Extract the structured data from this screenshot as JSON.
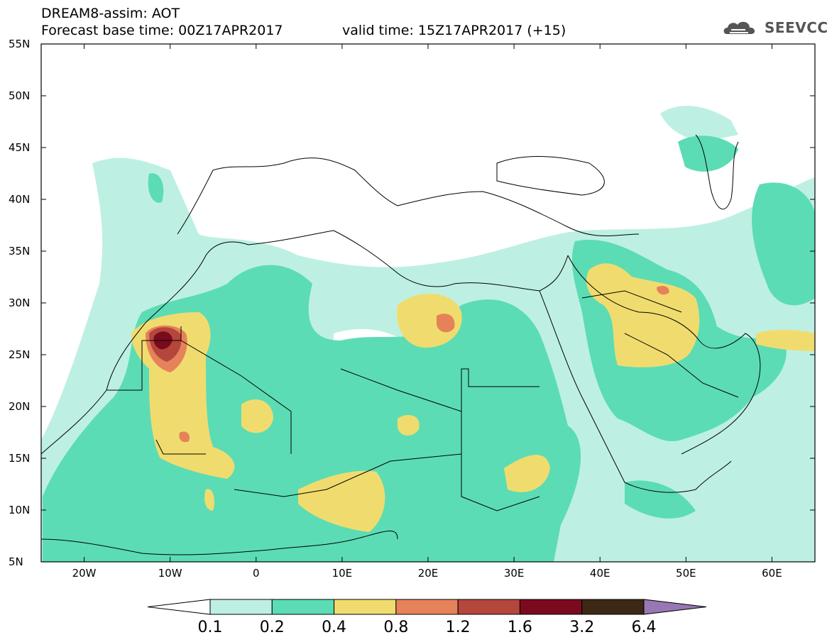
{
  "header": {
    "title": "DREAM8-assim: AOT",
    "base_time": "Forecast base time: 00Z17APR2017",
    "valid_time": "valid time: 15Z17APR2017 (+15)",
    "logo_text": "SEEVCCC"
  },
  "map": {
    "extent": {
      "lon": [
        -25,
        65
      ],
      "lat": [
        5,
        55
      ]
    },
    "lat_labels": [
      "55N",
      "50N",
      "45N",
      "40N",
      "35N",
      "30N",
      "25N",
      "20N",
      "15N",
      "10N",
      "5N"
    ],
    "lon_labels": [
      "20W",
      "10W",
      "0",
      "10E",
      "20E",
      "30E",
      "40E",
      "50E",
      "60E"
    ]
  },
  "colorbar": {
    "levels": [
      "0.1",
      "0.2",
      "0.4",
      "0.8",
      "1.2",
      "1.6",
      "3.2",
      "6.4"
    ],
    "colors": [
      "#ffffff",
      "#bdf0e2",
      "#5cdcb4",
      "#f0dc6e",
      "#e6825a",
      "#b4463c",
      "#7a0a1e",
      "#3c2814",
      "#9878b4"
    ]
  }
}
